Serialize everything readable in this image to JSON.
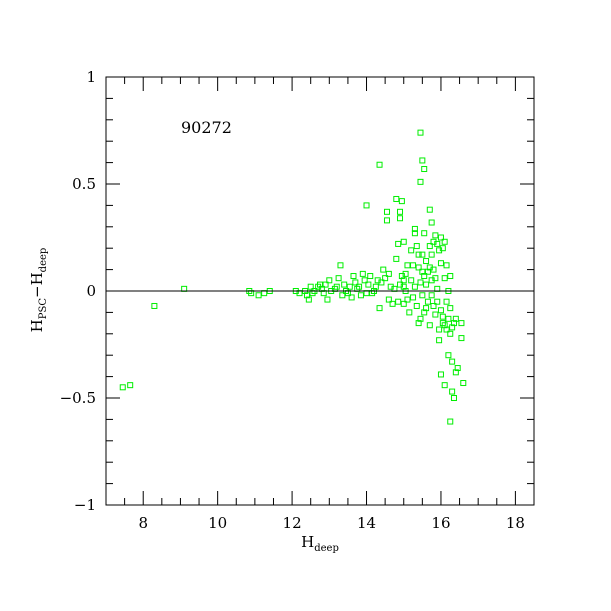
{
  "chart_data": {
    "type": "scatter",
    "title": "",
    "annotation": "90272",
    "xlabel": {
      "main": "H",
      "sub": "deep"
    },
    "ylabel": {
      "main1": "H",
      "sub1": "PSC",
      "dash": "−",
      "main2": "H",
      "sub2": "deep"
    },
    "xlim": [
      7,
      18.5
    ],
    "ylim": [
      -1,
      1
    ],
    "xticks": [
      8,
      10,
      12,
      14,
      16,
      18
    ],
    "xtick_labels": [
      "8",
      "10",
      "12",
      "14",
      "16",
      "18"
    ],
    "yticks": [
      -1,
      -0.5,
      0,
      0.5,
      1
    ],
    "ytick_labels": [
      "−1",
      "−0.5",
      "0",
      "0.5",
      "1"
    ],
    "reference_line_y": 0,
    "marker": "open-square",
    "marker_color": "#00ee00",
    "grid": false,
    "points": [
      [
        7.45,
        -0.45
      ],
      [
        7.65,
        -0.44
      ],
      [
        8.3,
        -0.07
      ],
      [
        9.1,
        0.01
      ],
      [
        10.85,
        0.0
      ],
      [
        10.9,
        -0.01
      ],
      [
        11.1,
        -0.02
      ],
      [
        11.25,
        -0.01
      ],
      [
        11.4,
        0.0
      ],
      [
        12.1,
        0.0
      ],
      [
        12.2,
        -0.01
      ],
      [
        12.35,
        0.0
      ],
      [
        12.4,
        -0.02
      ],
      [
        12.45,
        -0.04
      ],
      [
        12.5,
        0.02
      ],
      [
        12.55,
        -0.01
      ],
      [
        12.6,
        0.0
      ],
      [
        12.7,
        0.02
      ],
      [
        12.75,
        0.03
      ],
      [
        12.8,
        0.01
      ],
      [
        12.85,
        -0.01
      ],
      [
        12.9,
        0.03
      ],
      [
        12.95,
        -0.04
      ],
      [
        13.0,
        0.05
      ],
      [
        13.05,
        0.0
      ],
      [
        13.15,
        0.01
      ],
      [
        13.2,
        0.02
      ],
      [
        13.25,
        0.06
      ],
      [
        13.3,
        0.12
      ],
      [
        13.35,
        -0.02
      ],
      [
        13.4,
        0.03
      ],
      [
        13.45,
        0.0
      ],
      [
        13.5,
        -0.01
      ],
      [
        13.55,
        0.02
      ],
      [
        13.6,
        -0.03
      ],
      [
        13.65,
        0.07
      ],
      [
        13.7,
        0.04
      ],
      [
        13.75,
        0.01
      ],
      [
        13.8,
        0.02
      ],
      [
        13.85,
        -0.02
      ],
      [
        13.9,
        0.08
      ],
      [
        13.95,
        0.05
      ],
      [
        14.0,
        0.4
      ],
      [
        14.0,
        -0.01
      ],
      [
        14.05,
        0.03
      ],
      [
        14.1,
        0.07
      ],
      [
        14.15,
        -0.01
      ],
      [
        14.2,
        0.0
      ],
      [
        14.25,
        0.02
      ],
      [
        14.3,
        0.05
      ],
      [
        14.35,
        0.59
      ],
      [
        14.35,
        -0.08
      ],
      [
        14.4,
        0.04
      ],
      [
        14.45,
        0.1
      ],
      [
        14.5,
        0.06
      ],
      [
        14.55,
        0.37
      ],
      [
        14.55,
        0.33
      ],
      [
        14.6,
        0.08
      ],
      [
        14.6,
        -0.04
      ],
      [
        14.65,
        0.02
      ],
      [
        14.7,
        -0.06
      ],
      [
        14.75,
        0.01
      ],
      [
        14.8,
        0.43
      ],
      [
        14.8,
        0.15
      ],
      [
        14.85,
        0.22
      ],
      [
        14.85,
        -0.05
      ],
      [
        14.9,
        0.37
      ],
      [
        14.9,
        0.34
      ],
      [
        14.9,
        0.03
      ],
      [
        14.95,
        0.42
      ],
      [
        14.95,
        0.07
      ],
      [
        15.0,
        0.23
      ],
      [
        15.0,
        0.05
      ],
      [
        15.0,
        0.02
      ],
      [
        15.0,
        -0.06
      ],
      [
        15.05,
        0.08
      ],
      [
        15.05,
        0.0
      ],
      [
        15.1,
        -0.04
      ],
      [
        15.15,
        -0.1
      ],
      [
        15.2,
        0.19
      ],
      [
        15.2,
        0.05
      ],
      [
        15.25,
        0.12
      ],
      [
        15.25,
        -0.03
      ],
      [
        15.3,
        0.29
      ],
      [
        15.3,
        0.27
      ],
      [
        15.3,
        0.02
      ],
      [
        15.35,
        0.21
      ],
      [
        15.35,
        -0.07
      ],
      [
        15.4,
        0.17
      ],
      [
        15.4,
        0.11
      ],
      [
        15.4,
        -0.15
      ],
      [
        15.45,
        0.74
      ],
      [
        15.45,
        0.51
      ],
      [
        15.45,
        0.04
      ],
      [
        15.45,
        -0.13
      ],
      [
        15.5,
        0.61
      ],
      [
        15.5,
        0.17
      ],
      [
        15.5,
        0.09
      ],
      [
        15.5,
        -0.02
      ],
      [
        15.55,
        0.57
      ],
      [
        15.55,
        0.27
      ],
      [
        15.55,
        0.07
      ],
      [
        15.55,
        -0.1
      ],
      [
        15.6,
        0.14
      ],
      [
        15.6,
        0.03
      ],
      [
        15.6,
        -0.08
      ],
      [
        15.65,
        0.09
      ],
      [
        15.65,
        -0.05
      ],
      [
        15.7,
        0.38
      ],
      [
        15.7,
        0.21
      ],
      [
        15.7,
        0.11
      ],
      [
        15.7,
        -0.16
      ],
      [
        15.75,
        0.32
      ],
      [
        15.75,
        0.17
      ],
      [
        15.75,
        0.05
      ],
      [
        15.75,
        -0.02
      ],
      [
        15.8,
        0.23
      ],
      [
        15.8,
        0.1
      ],
      [
        15.8,
        -0.07
      ],
      [
        15.85,
        0.26
      ],
      [
        15.85,
        0.06
      ],
      [
        15.85,
        -0.11
      ],
      [
        15.9,
        0.22
      ],
      [
        15.9,
        0.01
      ],
      [
        15.9,
        -0.05
      ],
      [
        15.95,
        0.19
      ],
      [
        15.95,
        -0.18
      ],
      [
        15.95,
        -0.23
      ],
      [
        16.0,
        0.25
      ],
      [
        16.0,
        0.13
      ],
      [
        16.0,
        -0.09
      ],
      [
        16.0,
        -0.39
      ],
      [
        16.05,
        0.2
      ],
      [
        16.05,
        -0.12
      ],
      [
        16.05,
        -0.15
      ],
      [
        16.1,
        0.23
      ],
      [
        16.1,
        0.06
      ],
      [
        16.1,
        -0.16
      ],
      [
        16.1,
        -0.44
      ],
      [
        16.15,
        0.12
      ],
      [
        16.15,
        -0.05
      ],
      [
        16.15,
        -0.18
      ],
      [
        16.2,
        0.0
      ],
      [
        16.2,
        -0.13
      ],
      [
        16.2,
        -0.3
      ],
      [
        16.25,
        0.07
      ],
      [
        16.25,
        -0.08
      ],
      [
        16.25,
        -0.2
      ],
      [
        16.3,
        -0.17
      ],
      [
        16.3,
        -0.33
      ],
      [
        16.3,
        -0.47
      ],
      [
        16.35,
        -0.15
      ],
      [
        16.35,
        -0.5
      ],
      [
        16.4,
        -0.13
      ],
      [
        16.4,
        -0.38
      ],
      [
        16.45,
        -0.36
      ],
      [
        16.55,
        -0.15
      ],
      [
        16.55,
        -0.22
      ],
      [
        16.6,
        -0.43
      ],
      [
        16.25,
        -0.61
      ],
      [
        15.1,
        0.12
      ]
    ]
  }
}
